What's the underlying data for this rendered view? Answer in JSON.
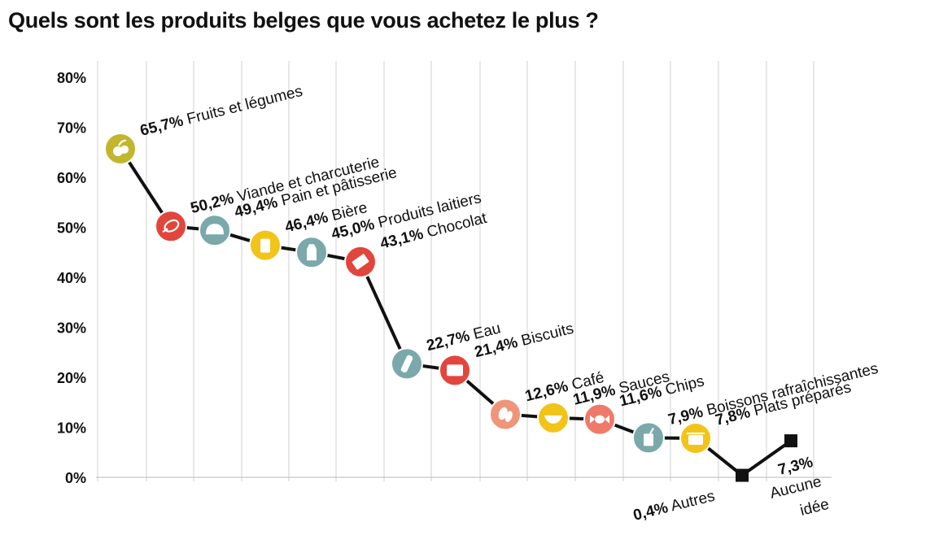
{
  "title": "Quels sont les produits belges que vous achetez le plus ?",
  "chart_data": {
    "type": "line",
    "title": "Quels sont les produits belges que vous achetez le plus ?",
    "ylim": [
      0,
      80
    ],
    "yticks": [
      "0%",
      "10%",
      "20%",
      "30%",
      "40%",
      "50%",
      "60%",
      "70%",
      "80%"
    ],
    "grid": "vertical",
    "line_color": "#111111",
    "points": [
      {
        "category": "Fruits et légumes",
        "value": 65.7,
        "value_label": "65,7%",
        "color": "#c2b62f",
        "icon": "fruits-icon"
      },
      {
        "category": "Viande et charcuterie",
        "value": 50.2,
        "value_label": "50,2%",
        "color": "#e2453c",
        "icon": "ham-icon"
      },
      {
        "category": "Pain et pâtisserie",
        "value": 49.4,
        "value_label": "49,4%",
        "color": "#7ba8aa",
        "icon": "bread-icon"
      },
      {
        "category": "Bière",
        "value": 46.4,
        "value_label": "46,4%",
        "color": "#f2c318",
        "icon": "beer-icon"
      },
      {
        "category": "Produits laitiers",
        "value": 45.0,
        "value_label": "45,0%",
        "color": "#7ba8aa",
        "icon": "milk-icon"
      },
      {
        "category": "Chocolat",
        "value": 43.1,
        "value_label": "43,1%",
        "color": "#e2453c",
        "icon": "chocolate-icon"
      },
      {
        "category": "Eau",
        "value": 22.7,
        "value_label": "22,7%",
        "color": "#7ba8aa",
        "icon": "water-bottle-icon"
      },
      {
        "category": "Biscuits",
        "value": 21.4,
        "value_label": "21,4%",
        "color": "#e2453c",
        "icon": "biscuit-icon"
      },
      {
        "category": "Café",
        "value": 12.6,
        "value_label": "12,6%",
        "color": "#ef957a",
        "icon": "coffee-bean-icon"
      },
      {
        "category": "Sauces",
        "value": 11.9,
        "value_label": "11,9%",
        "color": "#f2c318",
        "icon": "sauce-boat-icon"
      },
      {
        "category": "Chips",
        "value": 11.6,
        "value_label": "11,6%",
        "color": "#ef7a6a",
        "icon": "chips-icon"
      },
      {
        "category": "Boissons rafraîchissantes",
        "value": 7.9,
        "value_label": "7,9%",
        "color": "#7ba8aa",
        "icon": "soft-drink-icon"
      },
      {
        "category": "Plats préparés",
        "value": 7.8,
        "value_label": "7,8%",
        "color": "#f2c318",
        "icon": "ready-meal-icon"
      },
      {
        "category": "Autres",
        "value": 0.4,
        "value_label": "0,4%",
        "color": "#111111",
        "icon": "square-marker"
      },
      {
        "category": "Aucune idée",
        "value": 7.3,
        "value_label": "7,3%",
        "color": "#111111",
        "icon": "square-marker"
      }
    ]
  }
}
